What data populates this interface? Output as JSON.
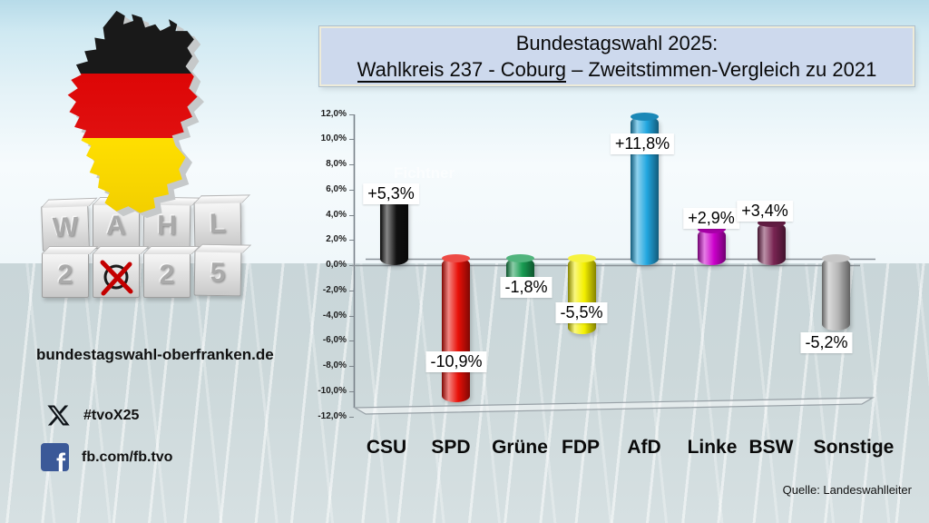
{
  "title": {
    "line1": "Bundestagswahl 2025:",
    "line2_underlined": "Wahlkreis 237 - Coburg",
    "line2_rest": " – Zweitstimmen-Vergleich zu 2021"
  },
  "branding": {
    "website": "bundestagswahl-oberfranken.de",
    "x_hashtag": "#tvoX25",
    "facebook": "fb.com/fb.tvo",
    "blocks_row1": [
      "W",
      "A",
      "H",
      "L"
    ],
    "blocks_row2": [
      "2",
      "✗",
      "2",
      "5"
    ]
  },
  "watermark": "Fichtner",
  "source": "Quelle: Landeswahlleiter",
  "chart_data": {
    "type": "bar",
    "title": "Bundestagswahl 2025: Wahlkreis 237 - Coburg – Zweitstimmen-Vergleich zu 2021",
    "categories": [
      "CSU",
      "SPD",
      "Grüne",
      "FDP",
      "AfD",
      "Linke",
      "BSW",
      "Sonstige"
    ],
    "values": [
      5.3,
      -10.9,
      -1.8,
      -5.5,
      11.8,
      2.9,
      3.4,
      -5.2
    ],
    "value_labels": [
      "+5,3%",
      "-10,9%",
      "-1,8%",
      "-5,5%",
      "+11,8%",
      "+2,9%",
      "+3,4%",
      "-5,2%"
    ],
    "colors": [
      "#101010",
      "#e81008",
      "#189c52",
      "#f4f000",
      "#22a7e0",
      "#cc00cc",
      "#782452",
      "#b5b5b5"
    ],
    "ylim": [
      -12,
      12
    ],
    "ytick_step": 2,
    "yticks": [
      "12,0%",
      "10,0%",
      "8,0%",
      "6,0%",
      "4,0%",
      "2,0%",
      "0,0%",
      "-2,0%",
      "-4,0%",
      "-6,0%",
      "-8,0%",
      "-10,0%",
      "-12,0%"
    ],
    "grid": false,
    "legend": "none",
    "style": "3d-cylinder-bars"
  }
}
